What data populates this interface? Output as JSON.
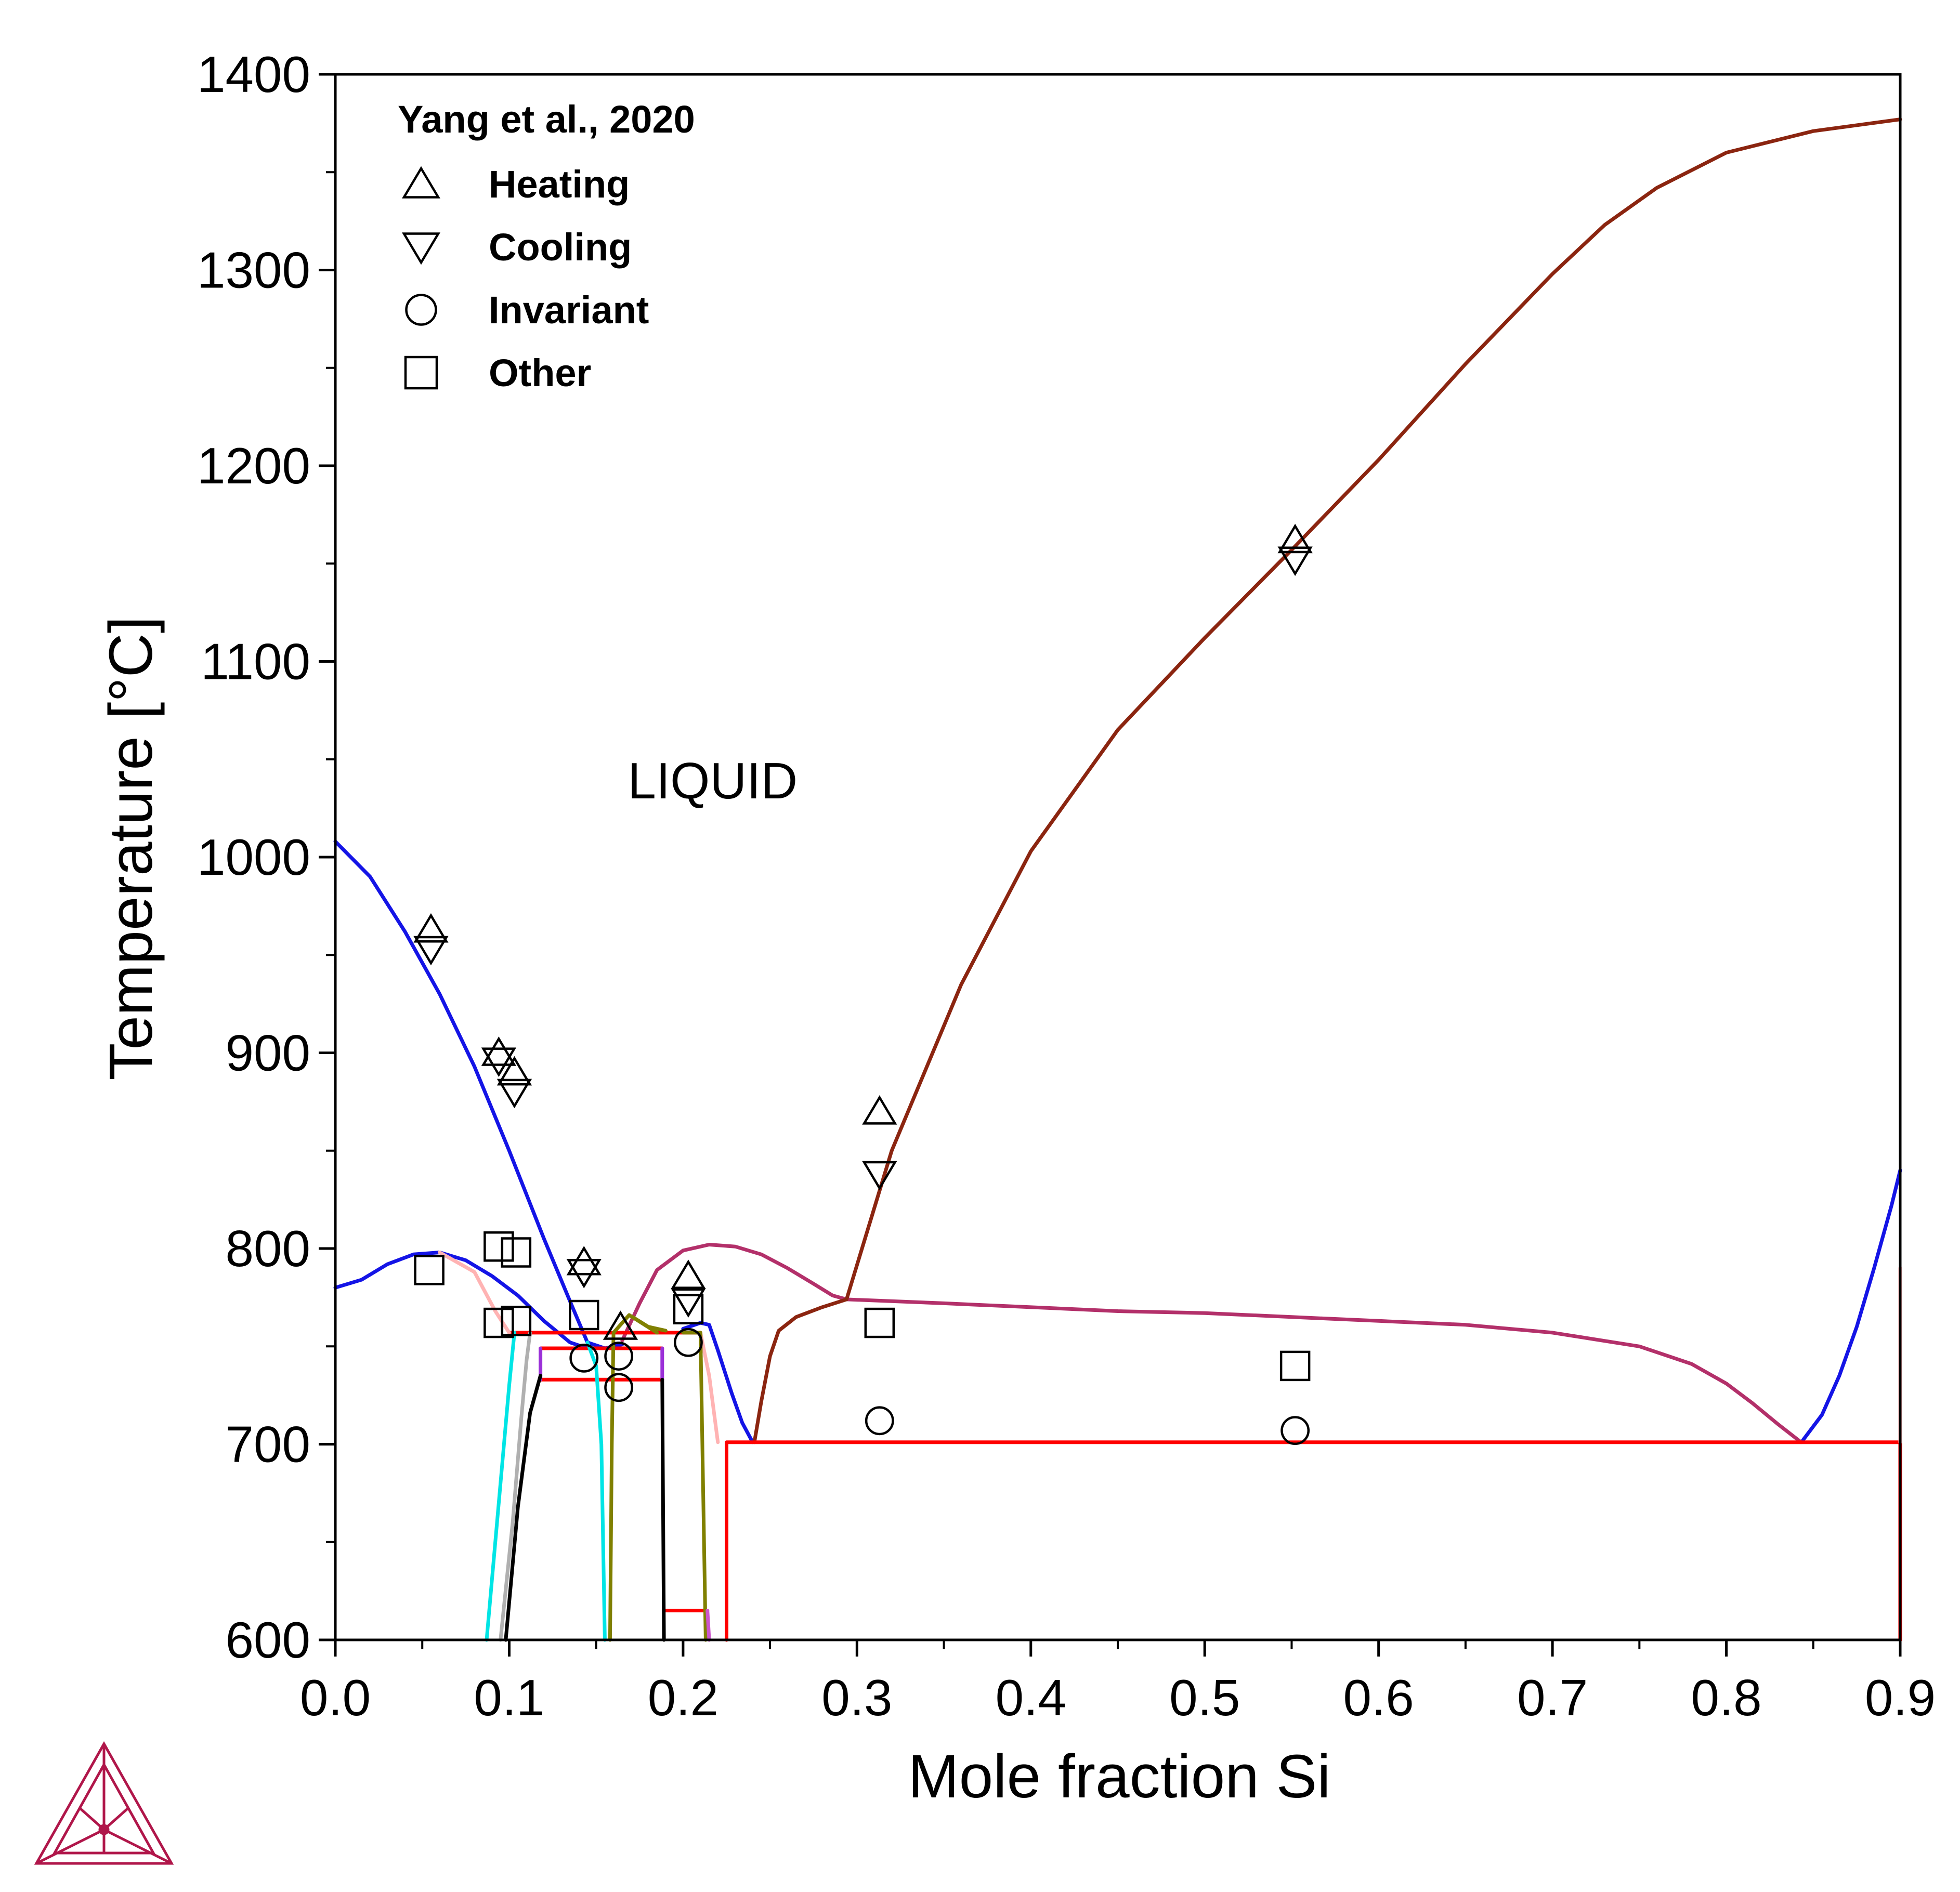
{
  "chart_data": {
    "type": "line",
    "xlabel": "Mole fraction Si",
    "ylabel": "Temperature [°C]",
    "xlim": [
      0.0,
      0.9
    ],
    "ylim": [
      600,
      1400
    ],
    "xticks": [
      "0.0",
      "0.1",
      "0.2",
      "0.3",
      "0.4",
      "0.5",
      "0.6",
      "0.7",
      "0.8",
      "0.9"
    ],
    "yticks": [
      "600",
      "700",
      "800",
      "900",
      "1000",
      "1100",
      "1200",
      "1300",
      "1400"
    ],
    "grid": false,
    "annotations": [
      {
        "text": "LIQUID",
        "x": 0.217,
        "y": 1030
      }
    ],
    "legend": {
      "title": "Yang et al., 2020",
      "placement": "top-left",
      "entries": [
        {
          "label": "Heating",
          "marker": "triangle-up"
        },
        {
          "label": "Cooling",
          "marker": "triangle-down"
        },
        {
          "label": "Invariant",
          "marker": "circle"
        },
        {
          "label": "Other",
          "marker": "square"
        }
      ]
    },
    "series": [
      {
        "color": "#1414e6",
        "points": [
          [
            0.0,
            1008
          ],
          [
            0.02,
            990
          ],
          [
            0.04,
            962
          ],
          [
            0.06,
            930
          ],
          [
            0.08,
            893
          ],
          [
            0.1,
            850
          ],
          [
            0.12,
            805
          ],
          [
            0.135,
            773
          ],
          [
            0.145,
            752
          ],
          [
            0.155,
            749
          ],
          [
            0.165,
            751
          ]
        ]
      },
      {
        "color": "#1414e6",
        "points": [
          [
            0.0,
            780
          ],
          [
            0.015,
            784
          ],
          [
            0.03,
            792
          ],
          [
            0.045,
            797
          ],
          [
            0.06,
            798
          ],
          [
            0.075,
            794
          ],
          [
            0.09,
            786
          ],
          [
            0.105,
            776
          ],
          [
            0.12,
            763
          ],
          [
            0.135,
            752
          ],
          [
            0.145,
            749
          ]
        ]
      },
      {
        "color": "#1414e6",
        "points": [
          [
            0.2,
            759
          ],
          [
            0.21,
            762
          ],
          [
            0.215,
            761
          ],
          [
            0.22,
            748
          ],
          [
            0.228,
            726
          ],
          [
            0.234,
            711
          ],
          [
            0.24,
            701
          ]
        ]
      },
      {
        "color": "#1414e6",
        "points": [
          [
            0.844,
            702
          ],
          [
            0.855,
            715
          ],
          [
            0.865,
            735
          ],
          [
            0.875,
            760
          ],
          [
            0.885,
            790
          ],
          [
            0.895,
            822
          ],
          [
            0.9,
            840
          ]
        ]
      },
      {
        "color": "#b3306a",
        "points": [
          [
            0.165,
            753
          ],
          [
            0.175,
            772
          ],
          [
            0.185,
            789
          ],
          [
            0.2,
            799
          ],
          [
            0.215,
            802
          ],
          [
            0.23,
            801
          ],
          [
            0.245,
            797
          ],
          [
            0.26,
            790
          ],
          [
            0.275,
            782
          ],
          [
            0.286,
            776
          ],
          [
            0.294,
            774
          ]
        ]
      },
      {
        "color": "#b3306a",
        "points": [
          [
            0.294,
            774
          ],
          [
            0.35,
            772
          ],
          [
            0.4,
            770
          ],
          [
            0.45,
            768
          ],
          [
            0.5,
            767
          ],
          [
            0.55,
            765
          ],
          [
            0.6,
            763
          ],
          [
            0.65,
            761
          ],
          [
            0.7,
            757
          ],
          [
            0.75,
            750
          ],
          [
            0.78,
            741
          ],
          [
            0.8,
            731
          ],
          [
            0.815,
            721
          ],
          [
            0.83,
            710
          ],
          [
            0.843,
            701
          ]
        ]
      },
      {
        "color": "#8b2510",
        "points": [
          [
            0.241,
            701
          ],
          [
            0.245,
            722
          ],
          [
            0.25,
            745
          ],
          [
            0.255,
            758
          ],
          [
            0.265,
            765
          ],
          [
            0.28,
            770
          ],
          [
            0.294,
            774
          ]
        ]
      },
      {
        "color": "#8b2510",
        "points": [
          [
            0.294,
            774
          ],
          [
            0.32,
            850
          ],
          [
            0.36,
            935
          ],
          [
            0.4,
            1003
          ],
          [
            0.45,
            1065
          ],
          [
            0.5,
            1112
          ],
          [
            0.55,
            1157
          ],
          [
            0.6,
            1203
          ],
          [
            0.65,
            1252
          ],
          [
            0.7,
            1298
          ],
          [
            0.73,
            1323
          ],
          [
            0.76,
            1342
          ],
          [
            0.8,
            1360
          ],
          [
            0.85,
            1371
          ],
          [
            0.9,
            1377
          ]
        ]
      },
      {
        "color": "#ff0000",
        "points": [
          [
            0.225,
            600
          ],
          [
            0.225,
            701
          ],
          [
            0.9,
            701
          ],
          [
            0.9,
            600
          ]
        ]
      },
      {
        "color": "#ff0000",
        "points": [
          [
            0.1,
            757
          ],
          [
            0.21,
            757
          ]
        ]
      },
      {
        "color": "#ff0000",
        "points": [
          [
            0.118,
            749
          ],
          [
            0.188,
            749
          ]
        ]
      },
      {
        "color": "#ff0000",
        "points": [
          [
            0.118,
            733
          ],
          [
            0.188,
            733
          ]
        ]
      },
      {
        "color": "#ff0000",
        "points": [
          [
            0.189,
            615
          ],
          [
            0.214,
            615
          ]
        ]
      },
      {
        "color": "#9b30d8",
        "points": [
          [
            0.118,
            749
          ],
          [
            0.118,
            733
          ]
        ]
      },
      {
        "color": "#9b30d8",
        "points": [
          [
            0.188,
            749
          ],
          [
            0.188,
            733
          ]
        ]
      },
      {
        "color": "#00e5e5",
        "points": [
          [
            0.087,
            600
          ],
          [
            0.095,
            680
          ],
          [
            0.1,
            730
          ],
          [
            0.103,
            757
          ]
        ]
      },
      {
        "color": "#00e5e5",
        "points": [
          [
            0.145,
            752
          ],
          [
            0.15,
            740
          ],
          [
            0.153,
            700
          ],
          [
            0.155,
            600
          ]
        ]
      },
      {
        "color": "#000000",
        "points": [
          [
            0.098,
            600
          ],
          [
            0.105,
            668
          ],
          [
            0.112,
            716
          ],
          [
            0.118,
            735
          ]
        ]
      },
      {
        "color": "#000000",
        "points": [
          [
            0.188,
            733
          ],
          [
            0.189,
            600
          ]
        ]
      },
      {
        "color": "#b0b0b0",
        "points": [
          [
            0.095,
            600
          ],
          [
            0.102,
            660
          ],
          [
            0.107,
            714
          ],
          [
            0.11,
            743
          ],
          [
            0.112,
            757
          ]
        ]
      },
      {
        "color": "#ffb3b3",
        "points": [
          [
            0.06,
            798
          ],
          [
            0.08,
            788
          ],
          [
            0.092,
            768
          ],
          [
            0.1,
            757
          ]
        ]
      },
      {
        "color": "#ffb3b3",
        "points": [
          [
            0.21,
            757
          ],
          [
            0.215,
            735
          ],
          [
            0.22,
            701
          ]
        ]
      },
      {
        "color": "#ffb3b3",
        "points": [
          [
            0.9,
            701
          ],
          [
            0.9,
            790
          ]
        ]
      },
      {
        "color": "#808000",
        "points": [
          [
            0.158,
            600
          ],
          [
            0.159,
            700
          ],
          [
            0.16,
            757
          ],
          [
            0.169,
            766
          ],
          [
            0.185,
            757
          ]
        ]
      },
      {
        "color": "#808000",
        "points": [
          [
            0.2,
            757
          ],
          [
            0.21,
            757
          ],
          [
            0.213,
            600
          ]
        ]
      },
      {
        "color": "#cc55cc",
        "points": [
          [
            0.215,
            600
          ],
          [
            0.214,
            615
          ]
        ]
      },
      {
        "color": "#808000",
        "points": [
          [
            0.171,
            765
          ],
          [
            0.18,
            760
          ],
          [
            0.19,
            758
          ]
        ]
      }
    ],
    "markers": [
      {
        "label": "Heating",
        "type": "triangle-up",
        "points": [
          [
            0.055,
            963
          ],
          [
            0.094,
            900
          ],
          [
            0.103,
            890
          ],
          [
            0.143,
            793
          ],
          [
            0.164,
            760
          ],
          [
            0.203,
            786
          ],
          [
            0.313,
            870
          ],
          [
            0.552,
            1162
          ]
        ]
      },
      {
        "label": "Cooling",
        "type": "triangle-down",
        "points": [
          [
            0.055,
            953
          ],
          [
            0.094,
            896
          ],
          [
            0.103,
            880
          ],
          [
            0.143,
            788
          ],
          [
            0.203,
            773
          ],
          [
            0.313,
            838
          ],
          [
            0.552,
            1152
          ]
        ]
      },
      {
        "label": "Invariant",
        "type": "circle",
        "points": [
          [
            0.143,
            744
          ],
          [
            0.163,
            745
          ],
          [
            0.163,
            729
          ],
          [
            0.203,
            752
          ],
          [
            0.313,
            712
          ],
          [
            0.552,
            707
          ]
        ]
      },
      {
        "label": "Other",
        "type": "square",
        "points": [
          [
            0.054,
            789
          ],
          [
            0.094,
            801
          ],
          [
            0.104,
            798
          ],
          [
            0.094,
            762
          ],
          [
            0.104,
            763
          ],
          [
            0.143,
            766
          ],
          [
            0.203,
            769
          ],
          [
            0.313,
            762
          ],
          [
            0.552,
            740
          ]
        ]
      }
    ]
  }
}
